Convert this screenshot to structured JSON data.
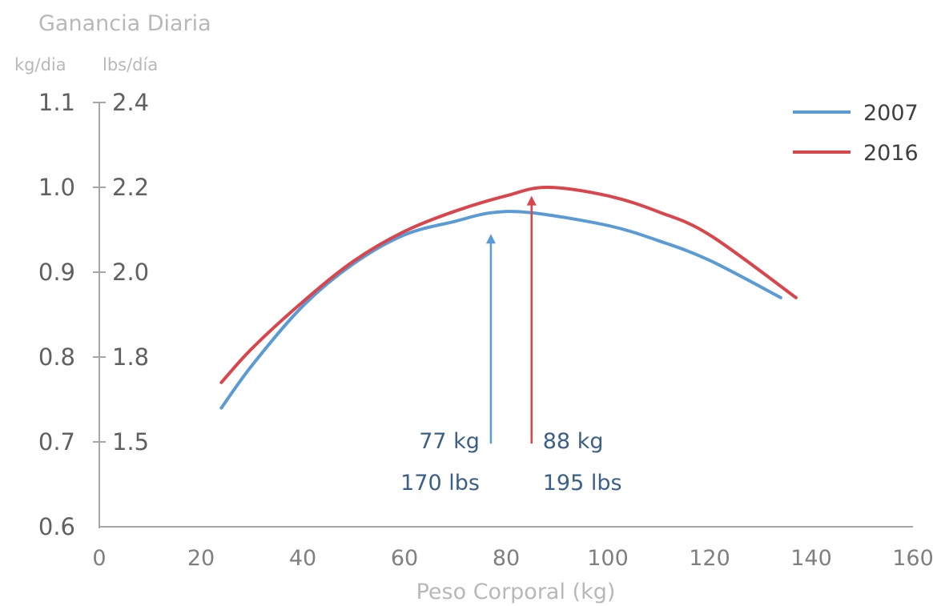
{
  "chart_data": {
    "type": "line",
    "title": "Ganancia Diaria",
    "y_units": [
      "kg/dia",
      "lbs/día"
    ],
    "xlabel": "Peso Corporal (kg)",
    "xlim": [
      0,
      160
    ],
    "ylim": [
      0.6,
      1.1
    ],
    "x_ticks": [
      "0",
      "20",
      "40",
      "60",
      "80",
      "100",
      "120",
      "140",
      "160"
    ],
    "y_ticks_kg": [
      "0.6",
      "0.7",
      "0.8",
      "0.9",
      "1.0",
      "1.1"
    ],
    "y_ticks_lbs": [
      "",
      "1.5",
      "1.8",
      "2.0",
      "2.2",
      "2.4"
    ],
    "grid": false,
    "legend_position": "top-right",
    "series": [
      {
        "name": "2007",
        "color": "#5b9bd5",
        "x": [
          24,
          30,
          40,
          50,
          60,
          70,
          77,
          85,
          100,
          110,
          120,
          134
        ],
        "y": [
          0.74,
          0.79,
          0.86,
          0.91,
          0.944,
          0.96,
          0.97,
          0.97,
          0.955,
          0.937,
          0.914,
          0.87
        ]
      },
      {
        "name": "2016",
        "color": "#d9454b",
        "x": [
          24,
          30,
          40,
          50,
          60,
          70,
          80,
          88,
          100,
          110,
          120,
          137
        ],
        "y": [
          0.77,
          0.81,
          0.865,
          0.913,
          0.948,
          0.972,
          0.99,
          1.0,
          0.99,
          0.971,
          0.944,
          0.87
        ]
      }
    ],
    "annotations": [
      {
        "series": "2007",
        "x": 77,
        "arrow_from_y": 0.698,
        "arrow_to_y": 0.945,
        "lines": [
          "77 kg",
          "170 lbs"
        ]
      },
      {
        "series": "2016",
        "x": 85,
        "arrow_from_y": 0.698,
        "arrow_to_y": 0.99,
        "lines": [
          "88 kg",
          "195 lbs"
        ]
      }
    ]
  }
}
